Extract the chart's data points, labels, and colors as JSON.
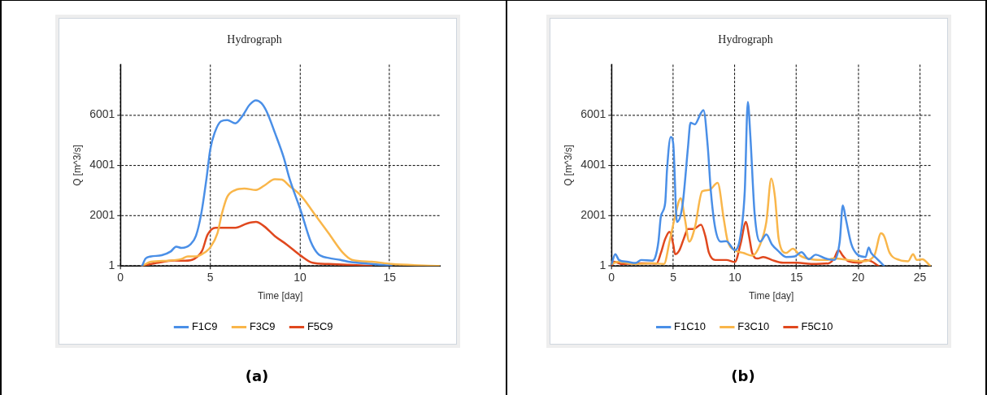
{
  "chart_data": [
    {
      "type": "line",
      "title": "Hydrograph",
      "xlabel": "Time [day]",
      "ylabel": "Q [m^3/s]",
      "xlim": [
        0,
        17.8
      ],
      "xticks": [
        0,
        5,
        10,
        15
      ],
      "ylim": [
        1,
        8001
      ],
      "yticks": [
        1,
        2001,
        4001,
        6001
      ],
      "grid": true,
      "legend": "bottom",
      "marker": "none",
      "line_style": "solid",
      "annotations": [
        "(a)"
      ],
      "series": [
        {
          "name": "F1C9",
          "color": "#4a8fe7",
          "x": [
            1.2,
            1.4,
            1.7,
            2.3,
            2.8,
            3.1,
            3.4,
            3.9,
            4.2,
            4.5,
            4.8,
            5.0,
            5.25,
            5.6,
            5.95,
            6.4,
            6.8,
            7.2,
            7.55,
            7.85,
            8.15,
            8.6,
            9.1,
            9.4,
            10.05,
            10.6,
            11.0,
            11.6,
            12.25,
            12.7,
            14.0,
            15.1
          ],
          "values": [
            1,
            300,
            380,
            430,
            580,
            770,
            720,
            860,
            1190,
            2080,
            3520,
            4630,
            5300,
            5750,
            5800,
            5670,
            5970,
            6410,
            6580,
            6470,
            6130,
            5300,
            4300,
            3520,
            2190,
            970,
            490,
            320,
            245,
            170,
            80,
            1
          ]
        },
        {
          "name": "F3C9",
          "color": "#f9b64a",
          "x": [
            1.2,
            1.7,
            2.65,
            3.4,
            3.75,
            4.2,
            4.7,
            5.0,
            5.4,
            5.65,
            5.95,
            6.4,
            6.9,
            7.55,
            8.0,
            8.6,
            9.0,
            9.4,
            10.05,
            10.8,
            11.6,
            12.4,
            12.9,
            14.0,
            15.1,
            17.8
          ],
          "values": [
            1,
            170,
            210,
            280,
            380,
            380,
            540,
            740,
            1300,
            2080,
            2750,
            3020,
            3080,
            3020,
            3190,
            3450,
            3430,
            3190,
            2800,
            2080,
            1300,
            520,
            245,
            170,
            80,
            1
          ]
        },
        {
          "name": "F5C9",
          "color": "#e0481e",
          "x": [
            1.2,
            2.0,
            3.0,
            3.6,
            4.1,
            4.55,
            4.85,
            5.3,
            5.95,
            6.4,
            7.05,
            7.55,
            8.0,
            8.6,
            9.25,
            10.05,
            10.7,
            11.6,
            14.0
          ],
          "values": [
            1,
            120,
            220,
            210,
            280,
            610,
            1240,
            1520,
            1520,
            1520,
            1690,
            1750,
            1580,
            1190,
            860,
            410,
            130,
            80,
            1
          ]
        }
      ]
    },
    {
      "type": "line",
      "title": "Hydrograph",
      "xlabel": "Time [day]",
      "ylabel": "Q [m^3/s]",
      "xlim": [
        0,
        25.9
      ],
      "xticks": [
        0,
        5,
        10,
        15,
        20,
        25
      ],
      "ylim": [
        1,
        8001
      ],
      "yticks": [
        1,
        2001,
        4001,
        6001
      ],
      "grid": true,
      "legend": "bottom",
      "marker": "none",
      "line_style": "solid",
      "annotations": [
        "(b)"
      ],
      "series": [
        {
          "name": "F1C10",
          "color": "#4a8fe7",
          "x": [
            0,
            0.3,
            0.6,
            1.25,
            1.95,
            2.4,
            3.3,
            3.55,
            3.8,
            4.0,
            4.35,
            4.5,
            4.8,
            5.0,
            5.3,
            5.75,
            6.2,
            6.4,
            6.75,
            7.25,
            7.45,
            7.8,
            8.05,
            8.4,
            8.85,
            9.3,
            10.0,
            10.45,
            10.8,
            11.05,
            11.25,
            11.6,
            12.05,
            12.55,
            13.0,
            13.45,
            14.15,
            14.85,
            15.4,
            16.0,
            16.55,
            17.35,
            18.05,
            18.5,
            18.75,
            19.0,
            19.45,
            19.9,
            20.6,
            20.85,
            21.05,
            21.5,
            22.1
          ],
          "values": [
            80,
            470,
            240,
            170,
            120,
            240,
            210,
            360,
            970,
            1970,
            2520,
            3860,
            5130,
            4860,
            1750,
            2410,
            4740,
            5690,
            5630,
            6080,
            6190,
            4740,
            2970,
            1520,
            970,
            990,
            630,
            1190,
            2970,
            6520,
            5190,
            2080,
            970,
            1250,
            860,
            630,
            360,
            380,
            550,
            270,
            450,
            300,
            240,
            970,
            2410,
            1860,
            860,
            470,
            360,
            740,
            520,
            300,
            1
          ]
        },
        {
          "name": "F3C10",
          "color": "#f9b64a",
          "x": [
            0,
            0.55,
            1.95,
            3.3,
            4.25,
            4.7,
            5.15,
            5.6,
            5.95,
            6.3,
            6.75,
            7.35,
            7.9,
            8.6,
            9.1,
            9.4,
            10.0,
            10.7,
            11.4,
            12.05,
            12.55,
            12.95,
            13.25,
            13.55,
            14.15,
            14.7,
            15.3,
            16.2,
            17.35,
            18.05,
            19.2,
            20.35,
            21.3,
            21.85,
            22.1,
            22.55,
            23.35,
            24.05,
            24.45,
            24.75,
            25.2,
            25.85
          ],
          "values": [
            80,
            170,
            80,
            110,
            80,
            970,
            1970,
            2690,
            1860,
            970,
            1520,
            2970,
            3020,
            3300,
            1860,
            1020,
            630,
            520,
            410,
            860,
            1750,
            3470,
            2740,
            1080,
            520,
            690,
            410,
            270,
            240,
            300,
            240,
            190,
            410,
            1300,
            1190,
            520,
            240,
            190,
            470,
            240,
            270,
            1
          ]
        },
        {
          "name": "F5C10",
          "color": "#e0481e",
          "x": [
            0,
            0.2,
            0.8,
            2.4,
            3.65,
            4.0,
            4.35,
            4.7,
            5.0,
            5.15,
            5.5,
            5.85,
            6.2,
            6.65,
            7.25,
            7.6,
            7.9,
            8.4,
            9.3,
            10.0,
            10.45,
            10.9,
            11.15,
            11.4,
            11.85,
            12.3,
            13.0,
            13.9,
            15.05,
            16.2,
            17.6,
            18.05,
            18.4,
            18.75,
            19.2,
            20.15,
            20.6,
            21.05,
            21.65
          ],
          "values": [
            1,
            170,
            80,
            110,
            100,
            520,
            1080,
            1360,
            860,
            470,
            630,
            1080,
            1470,
            1470,
            1640,
            1190,
            520,
            240,
            240,
            160,
            860,
            1750,
            1190,
            520,
            300,
            360,
            240,
            130,
            130,
            80,
            110,
            300,
            630,
            410,
            190,
            130,
            240,
            190,
            1
          ]
        }
      ]
    }
  ]
}
